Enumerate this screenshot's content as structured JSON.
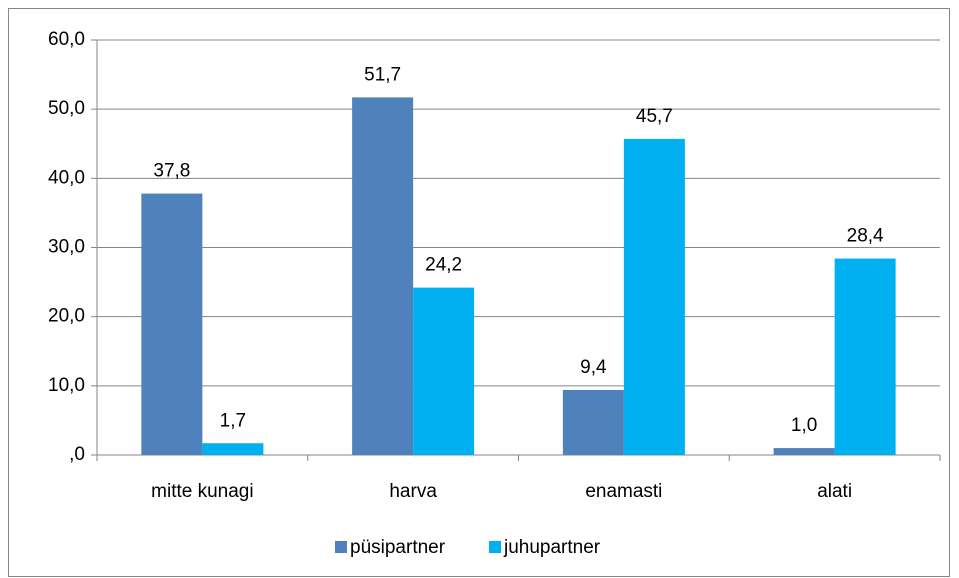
{
  "chart_data": {
    "type": "bar",
    "categories": [
      "mitte kunagi",
      "harva",
      "enamasti",
      "alati"
    ],
    "series": [
      {
        "name": "püsipartner",
        "color": "#4f81bd",
        "values": [
          37.8,
          51.7,
          9.4,
          1.0
        ],
        "value_labels": [
          "37,8",
          "51,7",
          "9,4",
          "1,0"
        ]
      },
      {
        "name": "juhupartner",
        "color": "#00b0f0",
        "values": [
          1.7,
          24.2,
          45.7,
          28.4
        ],
        "value_labels": [
          "1,7",
          "24,2",
          "45,7",
          "28,4"
        ]
      }
    ],
    "ylim": [
      0,
      60
    ],
    "yticks": [
      {
        "value": 0,
        "label": ",0"
      },
      {
        "value": 10,
        "label": "10,0"
      },
      {
        "value": 20,
        "label": "20,0"
      },
      {
        "value": 30,
        "label": "30,0"
      },
      {
        "value": 40,
        "label": "40,0"
      },
      {
        "value": 50,
        "label": "50,0"
      },
      {
        "value": 60,
        "label": "60,0"
      }
    ],
    "grid": true,
    "legend": "bottom"
  }
}
